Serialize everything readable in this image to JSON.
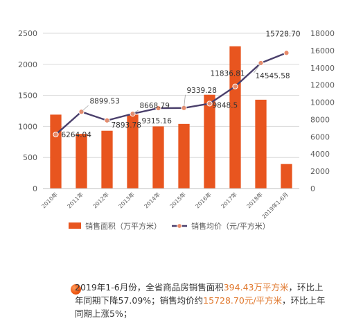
{
  "chart_data": {
    "type": "bar+line",
    "categories": [
      "2010年",
      "2011年",
      "2012年",
      "2013年",
      "2014年",
      "2015年",
      "2016年",
      "2017年",
      "2018年",
      "2019年1-6月"
    ],
    "series": [
      {
        "name": "销售面积（万平方米）",
        "type": "bar",
        "axis": "left",
        "color": "#e8551f",
        "values": [
          1190,
          880,
          930,
          1190,
          1000,
          1040,
          1510,
          2290,
          1430,
          394.43
        ]
      },
      {
        "name": "销售均价（元/平方米）",
        "type": "line",
        "axis": "right",
        "color": "#4a3f6b",
        "marker_color": "#e88a6a",
        "values": [
          6264.04,
          8899.53,
          7893.78,
          8668.79,
          9315.16,
          9339.28,
          9848.5,
          11836.81,
          14545.58,
          15728.7
        ],
        "labels": [
          "6264.04",
          "8899.53",
          "7893.78",
          "8668.79",
          "9315.16",
          "9339.28",
          "9848.5",
          "11836.81",
          "14545.58",
          "15728.70"
        ]
      }
    ],
    "y_left": {
      "ticks": [
        "0",
        "500",
        "1000",
        "1500",
        "2000",
        "2500"
      ],
      "ylim": [
        0,
        2500
      ]
    },
    "y_right": {
      "ticks": [
        "0",
        "2000",
        "4000",
        "6000",
        "8000",
        "10000",
        "12000",
        "14000",
        "16000",
        "18000"
      ],
      "ylim": [
        0,
        18000
      ]
    },
    "grid": true,
    "legend_position": "bottom"
  },
  "summary": {
    "part1": "2019年1-6月份，全省商品房销售面积",
    "highlight1": "394.43万平方米",
    "part2": "，环比上年同期下降57.09%；销售均价约",
    "highlight2": "15728.70元/平方米",
    "part3": "，环比上年同期上涨5%；"
  }
}
